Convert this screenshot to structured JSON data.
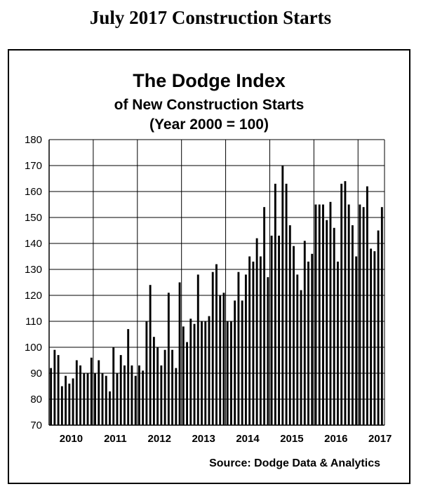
{
  "page": {
    "title": "July 2017 Construction Starts"
  },
  "chart_data": {
    "type": "bar",
    "title": "The Dodge Index",
    "subtitle_lines": [
      "of New Construction Starts",
      "(Year 2000 = 100)"
    ],
    "source": "Source:  Dodge Data & Analytics",
    "ylim": [
      70,
      180
    ],
    "yticks": [
      70,
      80,
      90,
      100,
      110,
      120,
      130,
      140,
      150,
      160,
      170,
      180
    ],
    "x_year_labels": [
      "2010",
      "2011",
      "2012",
      "2013",
      "2014",
      "2015",
      "2016",
      "2017"
    ],
    "grid": true,
    "bar_color": "#000000",
    "values": [
      92,
      99,
      97,
      85,
      89,
      86,
      88,
      95,
      93,
      90,
      90,
      96,
      90,
      95,
      90,
      89,
      83,
      100,
      90,
      97,
      93,
      107,
      93,
      89,
      93,
      91,
      110,
      124,
      104,
      100,
      93,
      99,
      121,
      99,
      92,
      125,
      108,
      102,
      111,
      109,
      128,
      110,
      110,
      112,
      129,
      132,
      120,
      121,
      110,
      110,
      118,
      129,
      118,
      128,
      135,
      133,
      142,
      135,
      154,
      127,
      143,
      163,
      143,
      170,
      163,
      147,
      139,
      128,
      122,
      141,
      133,
      136,
      155,
      155,
      155,
      149,
      156,
      146,
      133,
      163,
      164,
      155,
      147,
      135,
      155,
      154,
      162,
      138,
      137,
      145,
      154
    ]
  }
}
